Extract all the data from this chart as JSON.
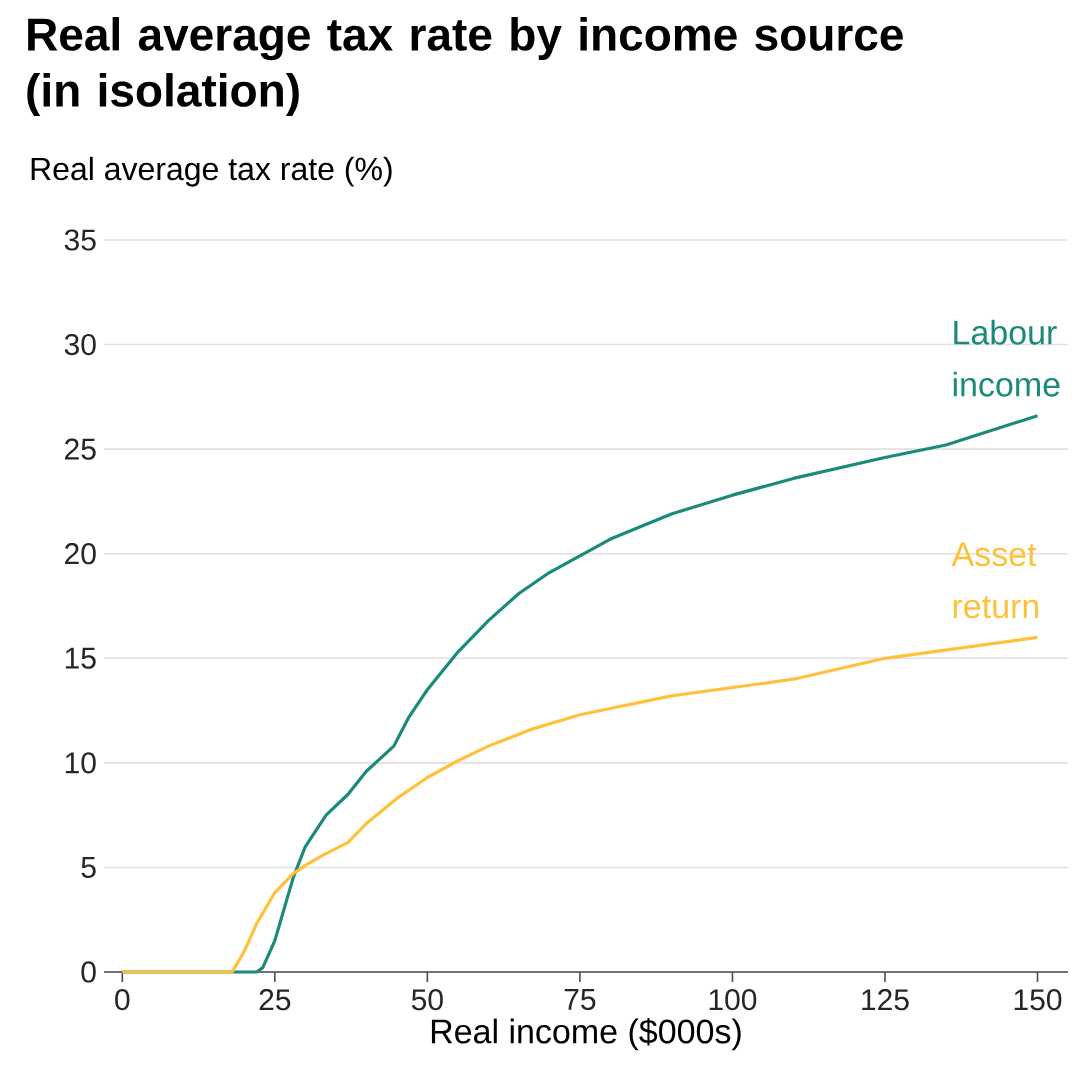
{
  "chart_data": {
    "type": "line",
    "title": "Real average tax rate by income source (in isolation)",
    "ylabel": "Real average tax rate (%)",
    "xlabel": "Real income ($000s)",
    "xlim": [
      -3,
      155
    ],
    "xticks": [
      0,
      25,
      50,
      75,
      100,
      125,
      150
    ],
    "ylim": [
      0,
      35
    ],
    "yticks": [
      0,
      5,
      10,
      15,
      20,
      25,
      30,
      35
    ],
    "grid": "y",
    "marker": "none",
    "line_style": "solid",
    "series": [
      {
        "name": "Labour income",
        "color": "#1a8a7a",
        "x": [
          0,
          22,
          23,
          25,
          26,
          28,
          30,
          33.4,
          37,
          40,
          44.5,
          47,
          50,
          55,
          60,
          65,
          70,
          80,
          90,
          100,
          110,
          125,
          135,
          150
        ],
        "values": [
          0,
          0,
          0.2,
          1.5,
          2.5,
          4.5,
          6,
          7.5,
          8.5,
          9.6,
          10.8,
          12.2,
          13.5,
          15.3,
          16.8,
          18.1,
          19.1,
          20.7,
          21.9,
          22.8,
          23.6,
          24.6,
          25.2,
          26.6
        ]
      },
      {
        "name": "Asset return",
        "color": "#fec13b",
        "x": [
          0,
          18,
          20,
          22,
          25,
          28,
          30,
          33,
          37,
          40,
          45,
          50,
          55,
          60,
          67,
          75,
          90,
          110,
          125,
          150
        ],
        "values": [
          0,
          0,
          1,
          2.3,
          3.8,
          4.7,
          5.1,
          5.6,
          6.2,
          7.1,
          8.3,
          9.3,
          10.1,
          10.8,
          11.6,
          12.3,
          13.2,
          14,
          15,
          16
        ]
      }
    ]
  }
}
